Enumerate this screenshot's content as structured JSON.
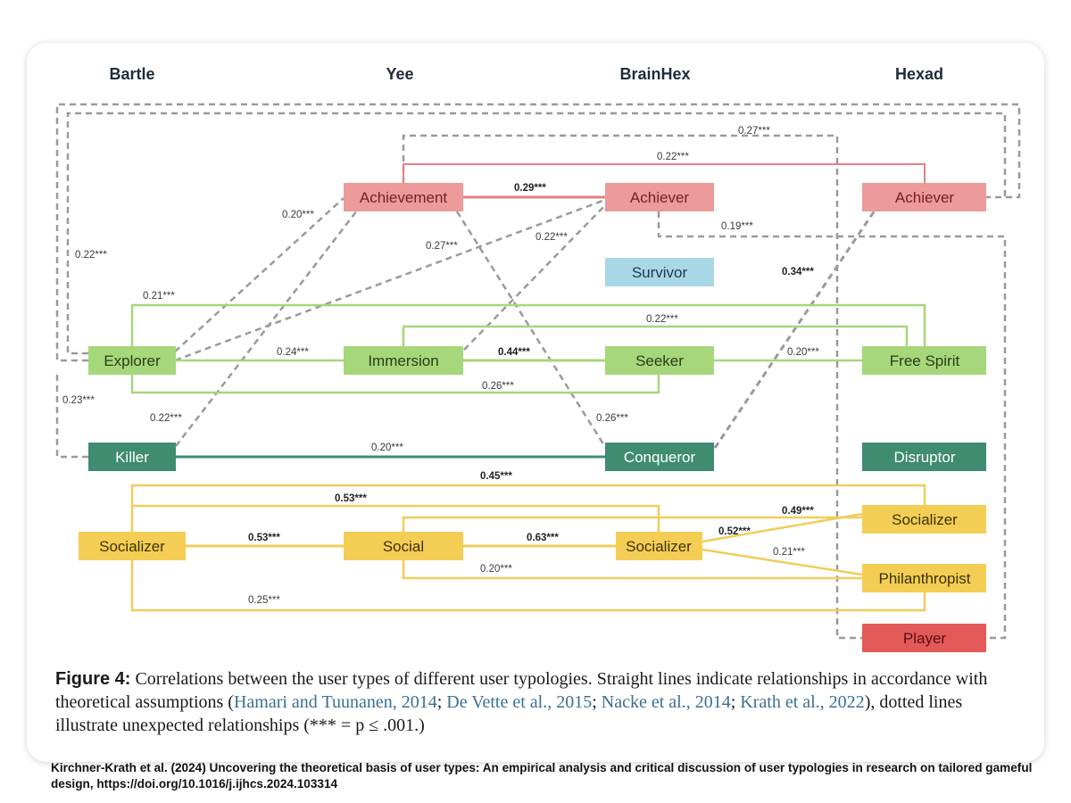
{
  "columns": [
    "Bartle",
    "Yee",
    "BrainHex",
    "Hexad"
  ],
  "nodes": {
    "bartle_explorer": "Explorer",
    "bartle_killer": "Killer",
    "bartle_socializer": "Socializer",
    "yee_achievement": "Achievement",
    "yee_immersion": "Immersion",
    "yee_social": "Social",
    "brainhex_achiever": "Achiever",
    "brainhex_survivor": "Survivor",
    "brainhex_seeker": "Seeker",
    "brainhex_conqueror": "Conqueror",
    "brainhex_socializer": "Socializer",
    "hexad_achiever": "Achiever",
    "hexad_freespirit": "Free Spirit",
    "hexad_disruptor": "Disruptor",
    "hexad_socializer": "Socializer",
    "hexad_philanthropist": "Philanthropist",
    "hexad_player": "Player"
  },
  "correlations": {
    "dash_explorer_hexad_achiever": "0.27***",
    "dash_explorer_left": "0.22***",
    "dash_killer_left": "0.23***",
    "dash_explorer_achievement": "0.20***",
    "dash_explorer_brainhex_achiever": "0.27***",
    "dash_immersion_brainhex_achiever": "0.22***",
    "dash_killer_achievement": "0.22***",
    "dash_achievement_conqueror": "0.26***",
    "dash_brainhex_achiever_player": "0.19***",
    "dash_conqueror_hexad_achiever": "0.34***",
    "achievement_hexad_achiever": "0.22***",
    "achievement_brainhex_achiever": "0.29***",
    "explorer_freespirit": "0.21***",
    "immersion_freespirit": "0.22***",
    "explorer_immersion": "0.24***",
    "immersion_seeker": "0.44***",
    "seeker_freespirit": "0.20***",
    "explorer_seeker": "0.26***",
    "killer_conqueror": "0.20***",
    "bartle_soc_hexad_soc": "0.45***",
    "bartle_soc_brainhex_soc": "0.53***",
    "bartle_soc_social": "0.53***",
    "social_brainhex_soc": "0.63***",
    "social_hexad_soc": "0.49***",
    "brainhex_soc_hexad_soc": "0.52***",
    "brainhex_soc_philanthropist": "0.21***",
    "social_philanthropist": "0.20***",
    "bartle_soc_philanthropist": "0.25***"
  },
  "colors": {
    "red": "#ec9a9a",
    "red_text": "#7a1f1f",
    "red_line": "#e57f87",
    "blue": "#a8d7e6",
    "green": "#a6d77a",
    "green_line": "#a6d77a",
    "dark_green": "#3f8c70",
    "yellow": "#f4ce54",
    "yellow_line": "#f2cc58",
    "player": "#e25a58",
    "dash": "#9a9a9a"
  },
  "caption": {
    "figure_label": "Figure 4:",
    "text_1": "Correlations between the user types of different user typologies. Straight lines indicate relationships in accordance with theoretical assumptions (",
    "cite_1": "Hamari and Tuunanen, 2014",
    "cite_2": "De Vette et al., 2015",
    "cite_3": "Nacke et al., 2014",
    "cite_4": "Krath et al., 2022",
    "text_2": "), dotted lines illustrate unexpected relationships (*** = p ≤ .001.)"
  },
  "credit": "Kirchner-Krath et al. (2024) Uncovering the theoretical basis of user types: An empirical analysis and critical discussion of user typologies in research on tailored gameful design, https://doi.org/10.1016/j.ijhcs.2024.103314"
}
